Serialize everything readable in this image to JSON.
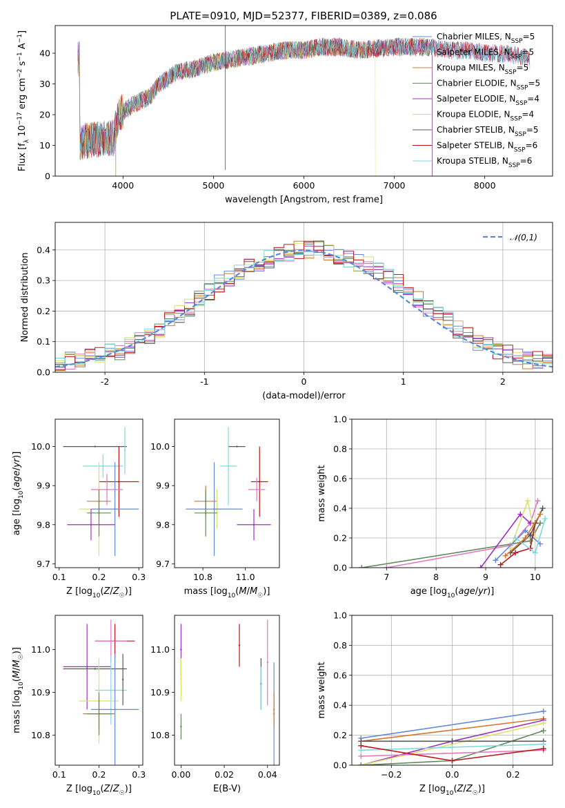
{
  "figure": {
    "title": "PLATE=0910, MJD=52377, FIBERID=0389, z=0.086"
  },
  "chart_data": [
    {
      "id": "spectrum",
      "type": "line",
      "title": "PLATE=0910, MJD=52377, FIBERID=0389, z=0.086",
      "xlabel": "wavelength [Angstrom, rest frame]",
      "ylabel": "Flux [f_λ 10^-17 erg cm^-2 s^-1 A^-1]",
      "xlim": [
        3250,
        8750
      ],
      "ylim": [
        0,
        49
      ],
      "xticks": [
        4000,
        5000,
        6000,
        7000,
        8000
      ],
      "yticks": [
        0,
        10,
        20,
        30,
        40
      ],
      "grid": false,
      "legend_position": "top-right",
      "continuum": {
        "x": [
          3520,
          3700,
          3900,
          3950,
          4100,
          4300,
          4400,
          4600,
          4800,
          5000,
          5200,
          5400,
          5600,
          5800,
          6000,
          6200,
          6400,
          6600,
          6800,
          7000,
          7200,
          7400,
          7600,
          7800,
          8000,
          8200,
          8400,
          8500
        ],
        "y": [
          11,
          12,
          12.5,
          20,
          23,
          26,
          30,
          34,
          35,
          37,
          38,
          39,
          40,
          41,
          41,
          42,
          42,
          41,
          41.5,
          42,
          42,
          42,
          41,
          41,
          40,
          40,
          39,
          38
        ]
      },
      "series": [
        {
          "name": "Chabrier MILES, N_SSP=5",
          "color": "#6688dd",
          "xmin": 3500,
          "xmax": 8500
        },
        {
          "name": "Salpeter MILES, N_SSP=5",
          "color": "#e377c2",
          "xmin": 3500,
          "xmax": 8500
        },
        {
          "name": "Kroupa MILES, N_SSP=5",
          "color": "#d8742a",
          "xmin": 3500,
          "xmax": 7420
        },
        {
          "name": "Chabrier ELODIE, N_SSP=5",
          "color": "#5f8a5f",
          "xmin": 3500,
          "xmax": 7420
        },
        {
          "name": "Salpeter ELODIE, N_SSP=4",
          "color": "#9b30c0",
          "xmin": 3500,
          "xmax": 7420
        },
        {
          "name": "Kroupa ELODIE, N_SSP=4",
          "color": "#d9e26a",
          "xmin": 3500,
          "xmax": 6790
        },
        {
          "name": "Chabrier STELIB, N_SSP=5",
          "color": "#555555",
          "xmin": 3500,
          "xmax": 8500
        },
        {
          "name": "Salpeter STELIB, N_SSP=6",
          "color": "#c0151a",
          "xmin": 3500,
          "xmax": 8500
        },
        {
          "name": "Kroupa STELIB, N_SSP=6",
          "color": "#7fd8e0",
          "xmin": 3500,
          "xmax": 8500
        }
      ]
    },
    {
      "id": "residuals",
      "type": "line",
      "xlabel": "(data-model)/error",
      "ylabel": "Normed distribution",
      "xlim": [
        -2.5,
        2.5
      ],
      "ylim": [
        0,
        0.49
      ],
      "xticks": [
        -2,
        -1,
        0,
        1,
        2
      ],
      "yticks": [
        0.0,
        0.1,
        0.2,
        0.3,
        0.4
      ],
      "ytick_labels": [
        "0.0",
        "0.1",
        "0.2",
        "0.3",
        "0.4"
      ],
      "grid": true,
      "legend_position": "top-right",
      "reference": {
        "name": "𝒩(0,1)",
        "color": "#5588dd",
        "mu": 0,
        "sigma": 1
      },
      "bins": {
        "start": -2.5,
        "width": 0.1,
        "base": [
          0.03,
          0.04,
          0.04,
          0.05,
          0.06,
          0.07,
          0.07,
          0.09,
          0.1,
          0.12,
          0.14,
          0.17,
          0.19,
          0.21,
          0.24,
          0.26,
          0.29,
          0.31,
          0.33,
          0.35,
          0.36,
          0.37,
          0.38,
          0.39,
          0.4,
          0.4,
          0.4,
          0.39,
          0.38,
          0.37,
          0.36,
          0.35,
          0.33,
          0.31,
          0.29,
          0.26,
          0.24,
          0.21,
          0.19,
          0.17,
          0.14,
          0.12,
          0.1,
          0.09,
          0.07,
          0.06,
          0.05,
          0.04,
          0.04,
          0.03
        ]
      },
      "series_colors": [
        "#6688dd",
        "#e377c2",
        "#d8742a",
        "#5f8a5f",
        "#9b30c0",
        "#d9e26a",
        "#555555",
        "#c0151a",
        "#7fd8e0"
      ]
    },
    {
      "id": "age_vs_Z",
      "type": "scatter",
      "xlabel": "Z [log10(Z/Z☉)]",
      "ylabel": "age  [log10(age/yr)]",
      "xlim": [
        0.09,
        0.31
      ],
      "ylim": [
        9.69,
        10.07
      ],
      "xticks": [
        0.1,
        0.2,
        0.3
      ],
      "xtick_labels": [
        "0.1",
        "0.2",
        "0.3"
      ],
      "yticks": [
        9.7,
        9.8,
        9.9,
        10.0
      ],
      "ytick_labels": [
        "9.7",
        "9.8",
        "9.9",
        "10.0"
      ],
      "points": [
        {
          "color": "#555555",
          "x": 0.19,
          "dx": 0.08,
          "y": 10.0,
          "dy": 0.0
        },
        {
          "color": "#7fd8e0",
          "x": 0.21,
          "dx": 0.05,
          "y": 9.95,
          "dy": 0.03
        },
        {
          "color": "#c0151a",
          "x": 0.25,
          "dx": 0.05,
          "y": 9.91,
          "dy": 0.09
        },
        {
          "color": "#e377c2",
          "x": 0.22,
          "dx": 0.04,
          "y": 9.89,
          "dy": 0.04
        },
        {
          "color": "#d8742a",
          "x": 0.2,
          "dx": 0.03,
          "y": 9.86,
          "dy": 0.04
        },
        {
          "color": "#d9e26a",
          "x": 0.2,
          "dx": 0.05,
          "y": 9.84,
          "dy": 0.12
        },
        {
          "color": "#6688dd",
          "x": 0.24,
          "dx": 0.06,
          "y": 9.84,
          "dy": 0.12
        },
        {
          "color": "#5f8a5f",
          "x": 0.2,
          "dx": 0.03,
          "y": 9.83,
          "dy": 0.06
        },
        {
          "color": "#9b30c0",
          "x": 0.18,
          "dx": 0.06,
          "y": 9.8,
          "dy": 0.04
        },
        {
          "color": "#7fd8e0",
          "x": 0.265,
          "dx": 0.0,
          "y": 9.99,
          "dy": 0.06
        }
      ]
    },
    {
      "id": "age_vs_mass",
      "type": "scatter",
      "xlabel": "mass [log10(M/M☉)]",
      "ylabel": "",
      "xlim": [
        10.75,
        11.12
      ],
      "ylim": [
        9.69,
        10.07
      ],
      "xticks": [
        10.85,
        11.0
      ],
      "xtick_labels": [
        "10.8",
        "11.0"
      ],
      "yticks": [
        9.7,
        9.8,
        9.9,
        10.0
      ],
      "ytick_labels": [
        "9.7",
        "9.8",
        "9.9",
        "10.0"
      ],
      "points": [
        {
          "color": "#555555",
          "x": 10.97,
          "dx": 0.03,
          "y": 10.0,
          "dy": 0.0
        },
        {
          "color": "#7fd8e0",
          "x": 10.94,
          "dx": 0.03,
          "y": 9.95,
          "dy": 0.1
        },
        {
          "color": "#c0151a",
          "x": 11.05,
          "dx": 0.03,
          "y": 9.91,
          "dy": 0.09
        },
        {
          "color": "#e377c2",
          "x": 11.04,
          "dx": 0.03,
          "y": 9.89,
          "dy": 0.03
        },
        {
          "color": "#d8742a",
          "x": 10.86,
          "dx": 0.04,
          "y": 9.86,
          "dy": 0.04
        },
        {
          "color": "#d9e26a",
          "x": 10.9,
          "dx": 0.05,
          "y": 9.84,
          "dy": 0.05
        },
        {
          "color": "#6688dd",
          "x": 10.89,
          "dx": 0.1,
          "y": 9.84,
          "dy": 0.12
        },
        {
          "color": "#5f8a5f",
          "x": 10.86,
          "dx": 0.04,
          "y": 9.83,
          "dy": 0.06
        },
        {
          "color": "#9b30c0",
          "x": 11.03,
          "dx": 0.06,
          "y": 9.8,
          "dy": 0.04
        }
      ]
    },
    {
      "id": "weights_vs_age",
      "type": "line",
      "xlabel": "age  [log10(age/yr)]",
      "ylabel": "mass weight",
      "xlim": [
        6.3,
        10.35
      ],
      "ylim": [
        0,
        1.0
      ],
      "xticks": [
        7,
        8,
        9,
        10
      ],
      "yticks": [
        0,
        0.2,
        0.4,
        0.6,
        0.8,
        1.0
      ],
      "ytick_labels": [
        "0.0",
        "0.2",
        "0.4",
        "0.6",
        "0.8",
        "1.0"
      ],
      "grid": true,
      "lines": [
        {
          "color": "#5f8a5f",
          "x": [
            6.5,
            9.9,
            10.1
          ],
          "y": [
            0.0,
            0.18,
            0.3
          ]
        },
        {
          "color": "#e377c2",
          "x": [
            7.0,
            9.5,
            9.9,
            10.05
          ],
          "y": [
            0.0,
            0.15,
            0.3,
            0.45
          ]
        },
        {
          "color": "#9b30c0",
          "x": [
            8.9,
            9.7,
            9.9
          ],
          "y": [
            0.0,
            0.36,
            0.3
          ]
        },
        {
          "color": "#d9e26a",
          "x": [
            9.5,
            9.85,
            10.0
          ],
          "y": [
            0.13,
            0.45,
            0.2
          ]
        },
        {
          "color": "#6688dd",
          "x": [
            9.2,
            9.8,
            10.1
          ],
          "y": [
            0.05,
            0.25,
            0.16
          ]
        },
        {
          "color": "#c0151a",
          "x": [
            9.3,
            9.6,
            9.9,
            10.0
          ],
          "y": [
            0.02,
            0.1,
            0.13,
            0.3
          ]
        },
        {
          "color": "#555555",
          "x": [
            9.5,
            9.9,
            10.15
          ],
          "y": [
            0.1,
            0.22,
            0.4
          ]
        },
        {
          "color": "#7fd8e0",
          "x": [
            9.6,
            10.0,
            10.2
          ],
          "y": [
            0.2,
            0.1,
            0.33
          ]
        },
        {
          "color": "#d8742a",
          "x": [
            9.4,
            9.8,
            10.1
          ],
          "y": [
            0.08,
            0.2,
            0.36
          ]
        }
      ]
    },
    {
      "id": "mass_vs_Z",
      "type": "scatter",
      "xlabel": "Z [log10(Z/Z☉)]",
      "ylabel": "mass [log10(M/M☉)]",
      "xlim": [
        0.09,
        0.31
      ],
      "ylim": [
        10.73,
        11.08
      ],
      "xticks": [
        0.1,
        0.2,
        0.3
      ],
      "xtick_labels": [
        "0.1",
        "0.2",
        "0.3"
      ],
      "yticks": [
        10.8,
        10.9,
        11.0
      ],
      "ytick_labels": [
        "10.8",
        "10.9",
        "11.0"
      ],
      "points": [
        {
          "color": "#c0151a",
          "x": 0.24,
          "dx": 0.05,
          "y": 11.02,
          "dy": 0.04
        },
        {
          "color": "#e377c2",
          "x": 0.23,
          "dx": 0.04,
          "y": 11.02,
          "dy": 0.05
        },
        {
          "color": "#9b30c0",
          "x": 0.17,
          "dx": 0.06,
          "y": 10.96,
          "dy": 0.1
        },
        {
          "color": "#555555",
          "x": 0.19,
          "dx": 0.08,
          "y": 10.955,
          "dy": 0.0
        },
        {
          "color": "#7fd8e0",
          "x": 0.23,
          "dx": 0.04,
          "y": 10.905,
          "dy": 0.08
        },
        {
          "color": "#d9e26a",
          "x": 0.2,
          "dx": 0.05,
          "y": 10.88,
          "dy": 0.1
        },
        {
          "color": "#6688dd",
          "x": 0.24,
          "dx": 0.06,
          "y": 10.86,
          "dy": 0.13
        },
        {
          "color": "#d8742a",
          "x": 0.2,
          "dx": 0.04,
          "y": 10.85,
          "dy": 0.04
        },
        {
          "color": "#5f8a5f",
          "x": 0.2,
          "dx": 0.03,
          "y": 10.85,
          "dy": 0.05
        },
        {
          "color": "#555555",
          "x": 0.26,
          "dx": 0.0,
          "y": 10.93,
          "dy": 0.06
        }
      ]
    },
    {
      "id": "mass_vs_ebv",
      "type": "scatter",
      "xlabel": "E(B-V)",
      "ylabel": "",
      "xlim": [
        -0.003,
        0.0455
      ],
      "ylim": [
        10.73,
        11.08
      ],
      "xticks": [
        0.0,
        0.02,
        0.04
      ],
      "xtick_labels": [
        "0.00",
        "0.02",
        "0.04"
      ],
      "yticks": [
        10.8,
        10.9,
        11.0
      ],
      "ytick_labels": [
        "10.8",
        "10.9",
        "11.0"
      ],
      "points": [
        {
          "color": "#9b30c0",
          "x": 0.0,
          "y": 11.0,
          "dy": 0.06
        },
        {
          "color": "#d9e26a",
          "x": 0.0,
          "y": 10.93,
          "dy": 0.05
        },
        {
          "color": "#5f8a5f",
          "x": 0.0,
          "y": 10.82,
          "dy": 0.03
        },
        {
          "color": "#c0151a",
          "x": 0.027,
          "y": 11.01,
          "dy": 0.05
        },
        {
          "color": "#555555",
          "x": 0.037,
          "y": 10.92,
          "dy": 0.06
        },
        {
          "color": "#7fd8e0",
          "x": 0.037,
          "y": 10.91,
          "dy": 0.05
        },
        {
          "color": "#e377c2",
          "x": 0.04,
          "y": 10.97,
          "dy": 0.1
        },
        {
          "color": "#6688dd",
          "x": 0.043,
          "y": 10.85,
          "dy": 0.12
        },
        {
          "color": "#d8742a",
          "x": 0.043,
          "y": 10.86,
          "dy": 0.04
        }
      ]
    },
    {
      "id": "weights_vs_Z",
      "type": "line",
      "xlabel": "Z [log10(Z/Z☉)]",
      "ylabel": "mass weight",
      "xlim": [
        -0.33,
        0.33
      ],
      "ylim": [
        0,
        1.0
      ],
      "xticks": [
        -0.2,
        0.0,
        0.2
      ],
      "xtick_labels": [
        "−0.2",
        "0.0",
        "0.2"
      ],
      "yticks": [
        0,
        0.2,
        0.4,
        0.6,
        0.8,
        1.0
      ],
      "ytick_labels": [
        "0.0",
        "0.2",
        "0.4",
        "0.6",
        "0.8",
        "1.0"
      ],
      "grid": true,
      "lines": [
        {
          "color": "#6688dd",
          "x": [
            -0.3,
            0.3
          ],
          "y": [
            0.18,
            0.36
          ]
        },
        {
          "color": "#d8742a",
          "x": [
            -0.3,
            0.3
          ],
          "y": [
            0.16,
            0.31
          ]
        },
        {
          "color": "#9b30c0",
          "x": [
            -0.3,
            0.0,
            0.3
          ],
          "y": [
            0.0,
            0.16,
            0.3
          ]
        },
        {
          "color": "#d9e26a",
          "x": [
            -0.3,
            0.3
          ],
          "y": [
            0.0,
            0.28
          ]
        },
        {
          "color": "#5f8a5f",
          "x": [
            -0.3,
            0.0,
            0.3
          ],
          "y": [
            0.0,
            0.03,
            0.23
          ]
        },
        {
          "color": "#555555",
          "x": [
            -0.3,
            0.0,
            0.3
          ],
          "y": [
            0.16,
            0.16,
            0.16
          ]
        },
        {
          "color": "#7fd8e0",
          "x": [
            -0.3,
            0.0,
            0.3
          ],
          "y": [
            0.1,
            0.12,
            0.14
          ]
        },
        {
          "color": "#e377c2",
          "x": [
            -0.3,
            0.3
          ],
          "y": [
            0.06,
            0.1
          ]
        },
        {
          "color": "#c0151a",
          "x": [
            -0.3,
            0.0,
            0.3
          ],
          "y": [
            0.13,
            0.03,
            0.11
          ]
        }
      ]
    }
  ]
}
